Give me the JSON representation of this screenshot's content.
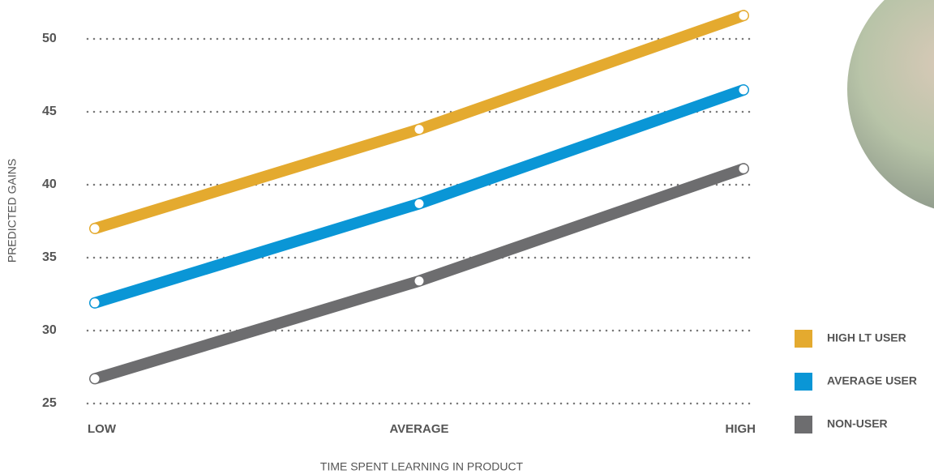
{
  "chart_data": {
    "type": "line",
    "x_label": "TIME SPENT LEARNING IN PRODUCT",
    "y_label": "PREDICTED GAINS",
    "categories": [
      "LOW",
      "AVERAGE",
      "HIGH"
    ],
    "series": [
      {
        "name": "HIGH LT USER",
        "color": "#e4aa2f",
        "values": [
          37.0,
          43.8,
          51.6
        ]
      },
      {
        "name": "AVERAGE USER",
        "color": "#0a96d6",
        "values": [
          31.9,
          38.7,
          46.5
        ]
      },
      {
        "name": "NON-USER",
        "color": "#6d6d6f",
        "values": [
          26.7,
          33.4,
          41.1
        ]
      }
    ],
    "ylim": [
      25,
      50
    ],
    "yticks": [
      25,
      30,
      35,
      40,
      45,
      50
    ],
    "grid": true,
    "legend": "bottom-right"
  }
}
